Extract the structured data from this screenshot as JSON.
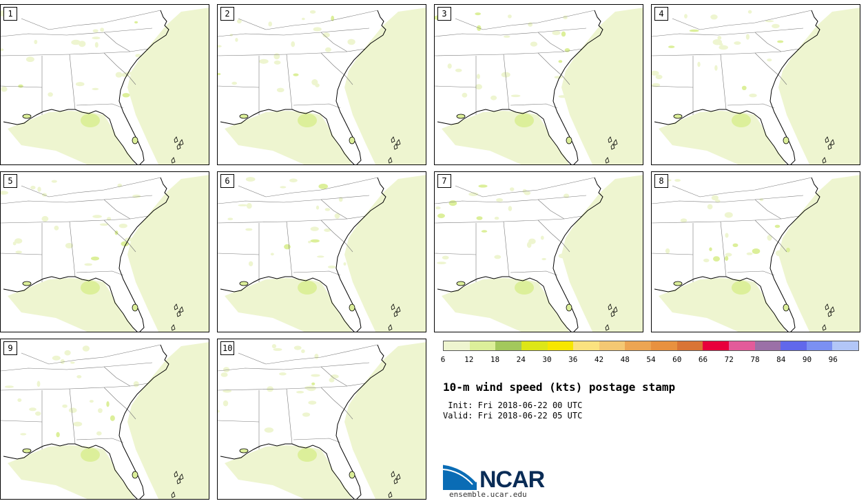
{
  "panels": [
    {
      "label": "1"
    },
    {
      "label": "2"
    },
    {
      "label": "3"
    },
    {
      "label": "4"
    },
    {
      "label": "5"
    },
    {
      "label": "6"
    },
    {
      "label": "7"
    },
    {
      "label": "8"
    },
    {
      "label": "9"
    },
    {
      "label": "10"
    }
  ],
  "colorbar": {
    "colors": [
      "#eef5d0",
      "#dcef9a",
      "#a3c85c",
      "#dde618",
      "#f7e600",
      "#fbe27f",
      "#f4c873",
      "#eda552",
      "#e8913f",
      "#d97435",
      "#e8003c",
      "#e35b9a",
      "#9b70a7",
      "#6168eb",
      "#7b90f2",
      "#b2c6f7"
    ],
    "ticks": [
      "6",
      "12",
      "18",
      "24",
      "30",
      "36",
      "42",
      "48",
      "54",
      "60",
      "66",
      "72",
      "78",
      "84",
      "90",
      "96"
    ]
  },
  "title": "10-m wind speed (kts) postage stamp",
  "init_text": " Init: Fri 2018-06-22 00 UTC",
  "valid_text": "Valid: Fri 2018-06-22 05 UTC",
  "logo_text": "NCAR",
  "site_text": "ensemble.ucar.edu",
  "map_colors": {
    "land_border": "#000000",
    "state_line": "#777777",
    "wind_fill": "#eef5d0",
    "wind_fill_darker": "#dcef9a"
  }
}
